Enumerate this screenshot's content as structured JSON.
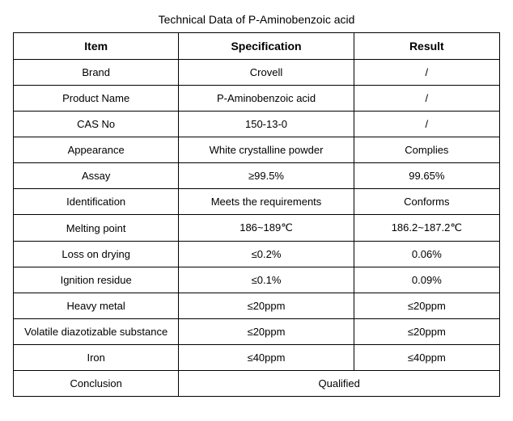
{
  "title": "Technical Data of P-Aminobenzoic acid",
  "headers": {
    "item": "Item",
    "specification": "Specification",
    "result": "Result"
  },
  "rows": [
    {
      "item": "Brand",
      "specification": "Crovell",
      "result": "/"
    },
    {
      "item": "Product Name",
      "specification": "P-Aminobenzoic acid",
      "result": "/"
    },
    {
      "item": "CAS No",
      "specification": "150-13-0",
      "result": "/"
    },
    {
      "item": "Appearance",
      "specification": "White crystalline powder",
      "result": "Complies"
    },
    {
      "item": "Assay",
      "specification": "≥99.5%",
      "result": "99.65%"
    },
    {
      "item": "Identification",
      "specification": "Meets the requirements",
      "result": "Conforms"
    },
    {
      "item": "Melting point",
      "specification": "186~189℃",
      "result": "186.2~187.2℃"
    },
    {
      "item": "Loss on drying",
      "specification": "≤0.2%",
      "result": "0.06%"
    },
    {
      "item": "Ignition residue",
      "specification": "≤0.1%",
      "result": "0.09%"
    },
    {
      "item": "Heavy metal",
      "specification": "≤20ppm",
      "result": "≤20ppm"
    },
    {
      "item": "Volatile diazotizable substance",
      "specification": "≤20ppm",
      "result": "≤20ppm"
    },
    {
      "item": "Iron",
      "specification": "≤40ppm",
      "result": "≤40ppm"
    }
  ],
  "conclusion": {
    "label": "Conclusion",
    "value": "Qualified"
  },
  "styling": {
    "title_fontsize": 14,
    "header_fontsize": 14,
    "cell_fontsize": 13,
    "border_color": "#000000",
    "background_color": "#ffffff",
    "text_color": "#000000",
    "col_widths": [
      "34%",
      "36%",
      "30%"
    ]
  }
}
